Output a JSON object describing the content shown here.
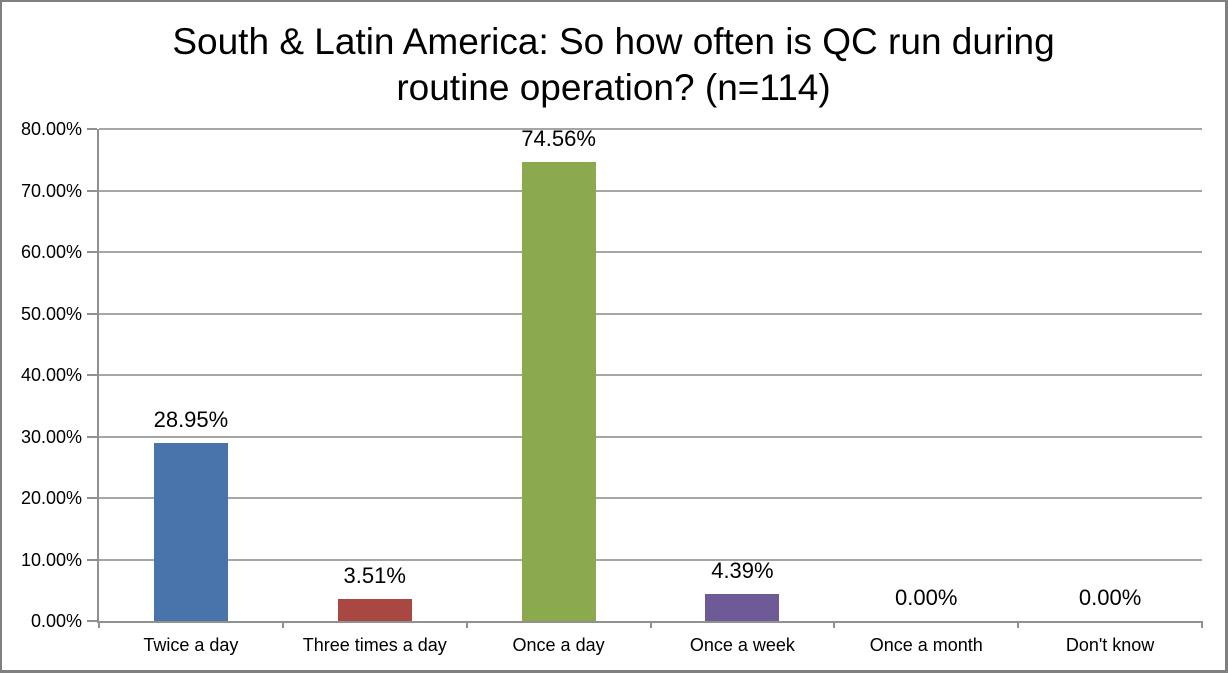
{
  "window": {
    "background": "#ffffff",
    "border_color": "#808080"
  },
  "chart_data": {
    "type": "bar",
    "title": "South & Latin America: So how often is QC run during routine operation? (n=114)",
    "categories": [
      "Twice a day",
      "Three times a day",
      "Once a day",
      "Once a week",
      "Once a month",
      "Don't know"
    ],
    "values": [
      28.95,
      3.51,
      74.56,
      4.39,
      0,
      0
    ],
    "data_labels": [
      "28.95%",
      "3.51%",
      "74.56%",
      "4.39%",
      "0.00%",
      "0.00%"
    ],
    "bar_colors": [
      "#4873AB",
      "#A94743",
      "#8BAA4E",
      "#6E5A97",
      null,
      null
    ],
    "xlabel": "",
    "ylabel": "",
    "ylim": [
      0,
      80
    ],
    "ytick_step": 10,
    "ytick_labels": [
      "0.00%",
      "10.00%",
      "20.00%",
      "30.00%",
      "40.00%",
      "50.00%",
      "60.00%",
      "70.00%",
      "80.00%"
    ],
    "grid": true,
    "legend": false,
    "gridline_color": "#A6A6A6",
    "axis_color": "#909090",
    "text_color": "#000000"
  }
}
